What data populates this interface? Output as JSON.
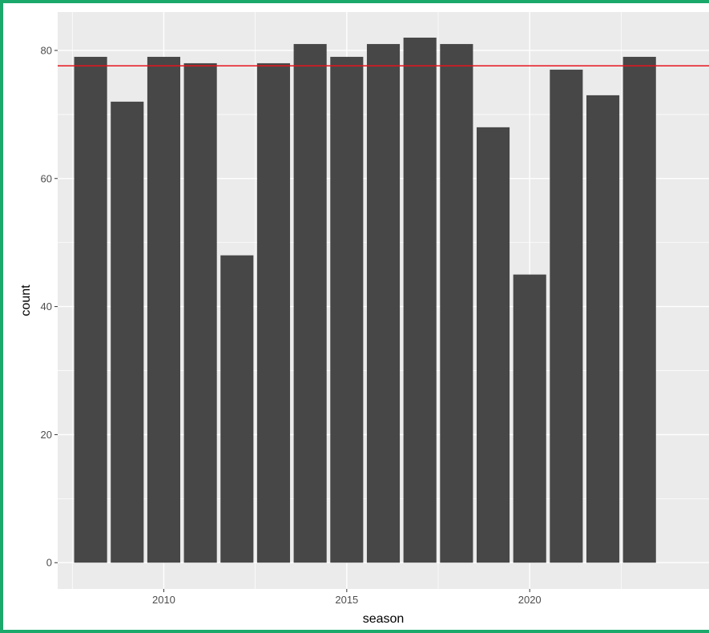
{
  "chart_data": {
    "type": "bar",
    "xlabel": "season",
    "ylabel": "count",
    "x": [
      2008,
      2009,
      2010,
      2011,
      2012,
      2013,
      2014,
      2015,
      2016,
      2017,
      2018,
      2019,
      2020,
      2021,
      2022,
      2023
    ],
    "values": [
      79,
      72,
      79,
      78,
      48,
      78,
      81,
      79,
      81,
      82,
      81,
      68,
      45,
      77,
      73,
      79
    ],
    "xlim": [
      2007.1,
      2024.9
    ],
    "ylim": [
      -4.1,
      86
    ],
    "x_ticks": [
      2010,
      2015,
      2020
    ],
    "y_ticks": [
      0,
      20,
      40,
      60,
      80
    ],
    "reference_line": {
      "y": 77.6,
      "color": "#e8141c"
    },
    "bar_color": "#474747",
    "panel_background": "#ebebeb",
    "grid": true,
    "border_color": "#1aa86b"
  }
}
